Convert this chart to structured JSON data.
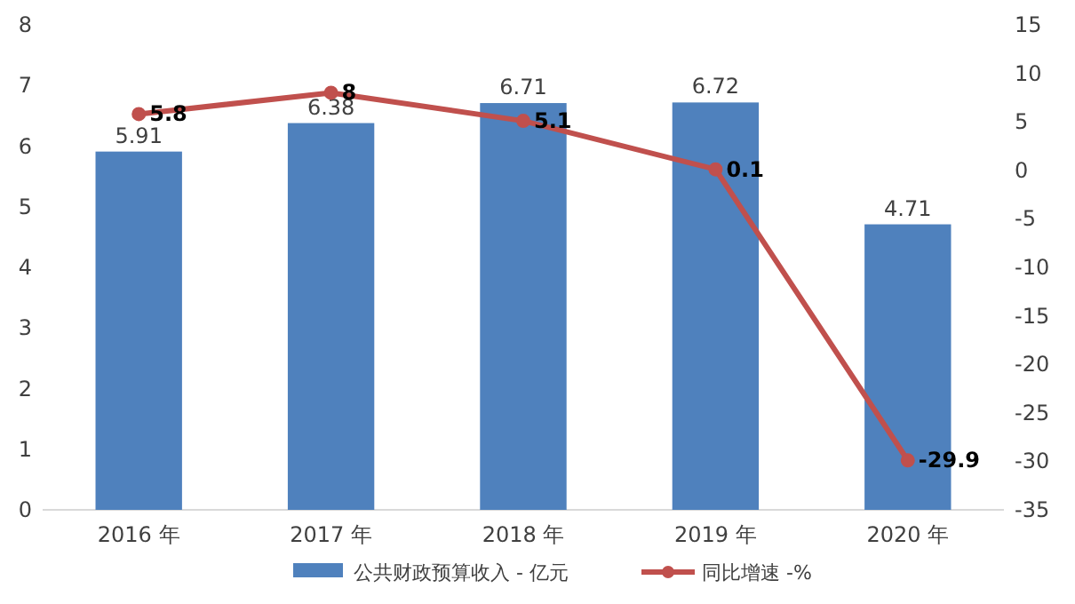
{
  "chart_data": {
    "type": "bar",
    "categories": [
      "2016 年",
      "2017 年",
      "2018 年",
      "2019 年",
      "2020 年"
    ],
    "series": [
      {
        "name": "公共财政预算收入 - 亿元",
        "color": "#4f81bd",
        "values": [
          5.91,
          6.38,
          6.71,
          6.72,
          4.71
        ]
      },
      {
        "name": "同比增速 -%",
        "type": "line",
        "axis": "y2",
        "color": "#c0504d",
        "values": [
          5.8,
          8,
          5.1,
          0.1,
          -29.9
        ],
        "marker": "circle"
      }
    ],
    "ylim": [
      0,
      8
    ],
    "yticks": [
      0,
      1,
      2,
      3,
      4,
      5,
      6,
      7,
      8
    ],
    "y2lim": [
      -35,
      15
    ],
    "y2ticks": [
      -35,
      -30,
      -25,
      -20,
      -15,
      -10,
      -5,
      0,
      5,
      10,
      15
    ],
    "data_labels": true,
    "legend": "bottom",
    "grid": false
  }
}
